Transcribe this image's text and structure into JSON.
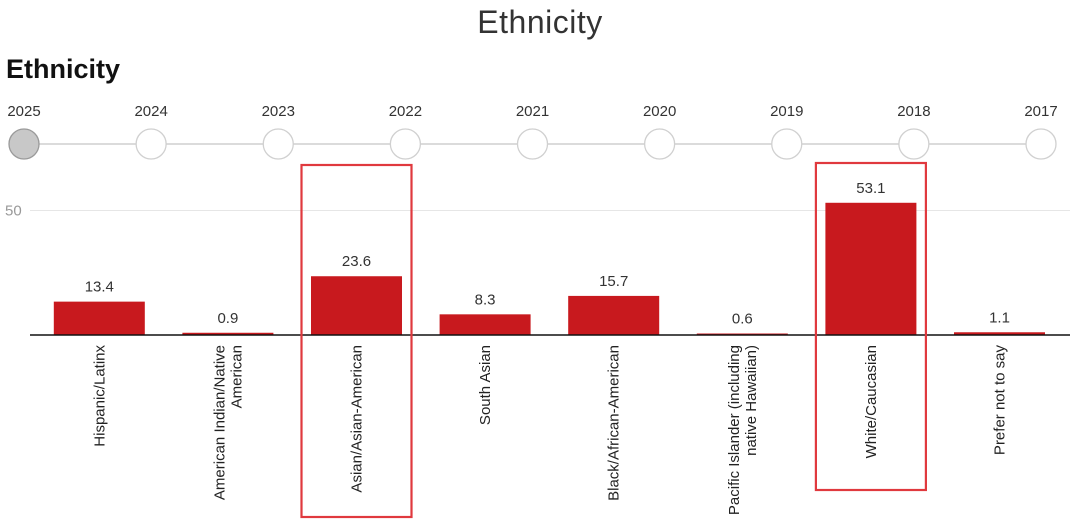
{
  "page_title": "Ethnicity",
  "chart_heading": "Ethnicity",
  "timeline": {
    "years": [
      "2025",
      "2024",
      "2023",
      "2022",
      "2021",
      "2020",
      "2019",
      "2018",
      "2017"
    ],
    "selected_index": 0
  },
  "colors": {
    "bar": "#c8191e",
    "highlight": "#e0393e",
    "grid": "#e6e6e6",
    "axis": "#111111",
    "selected_dot": "#c8c8c8"
  },
  "chart_data": {
    "type": "bar",
    "title": "Ethnicity",
    "categories": [
      [
        "Hispanic/Latinx"
      ],
      [
        "American Indian/Native",
        "American"
      ],
      [
        "Asian/Asian-American"
      ],
      [
        "South Asian"
      ],
      [
        "Black/African-American"
      ],
      [
        "Pacific Islander (including",
        "native Hawaiian)"
      ],
      [
        "White/Caucasian"
      ],
      [
        "Prefer not to say"
      ]
    ],
    "values": [
      13.4,
      0.9,
      23.6,
      8.3,
      15.7,
      0.6,
      53.1,
      1.1
    ],
    "value_labels": [
      "13.4",
      "0.9",
      "23.6",
      "8.3",
      "15.7",
      "0.6",
      "53.1",
      "1.1"
    ],
    "y_ticks": [
      "50"
    ],
    "ylim": [
      0,
      62
    ],
    "highlighted_indices": [
      2,
      6
    ]
  }
}
